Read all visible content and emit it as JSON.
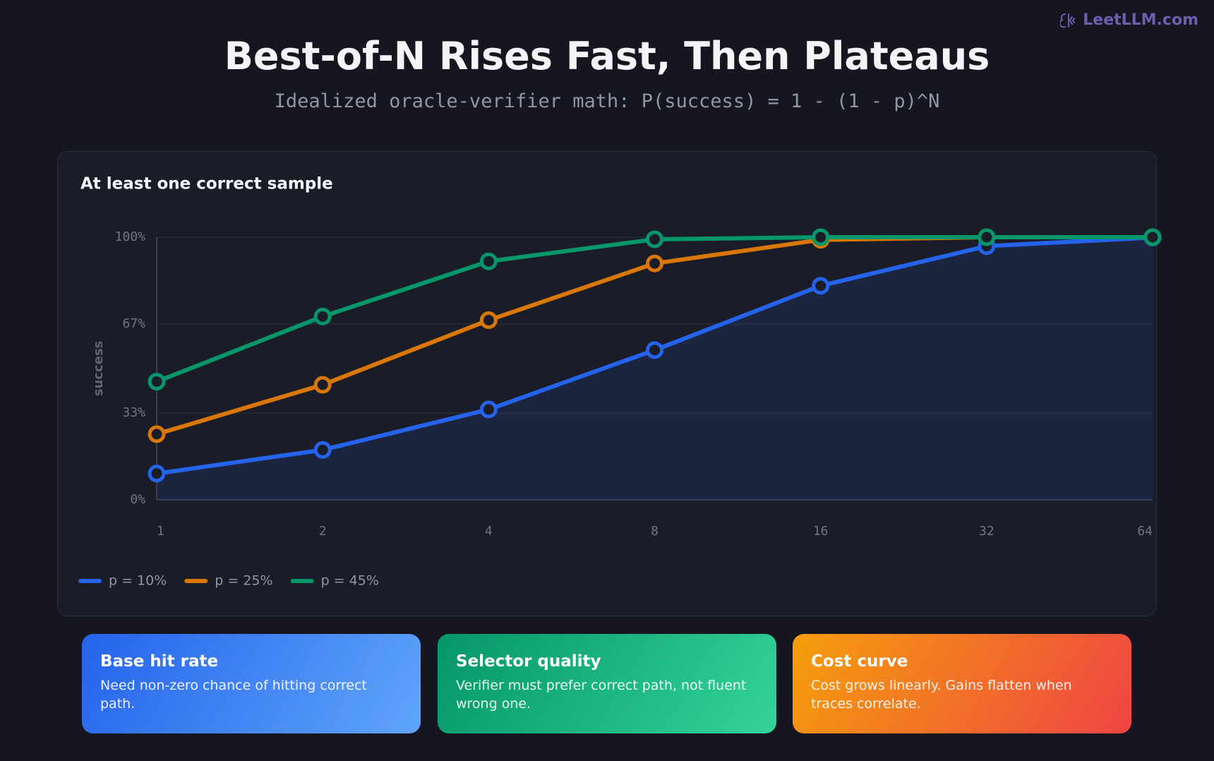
{
  "brand": "LeetLLM.com",
  "chart_data": {
    "type": "line",
    "title": "Best-of-N Rises Fast, Then Plateaus",
    "subtitle": "Idealized oracle-verifier math: P(success) = 1 - (1 - p)^N",
    "panel_title": "At least one correct sample",
    "y_label": "success",
    "categories": [
      "1",
      "2",
      "4",
      "8",
      "16",
      "32",
      "64"
    ],
    "ylim": [
      0,
      100
    ],
    "yticks": [
      {
        "value": 0,
        "label": "0%"
      },
      {
        "value": 33,
        "label": "33%"
      },
      {
        "value": 67,
        "label": "67%"
      },
      {
        "value": 100,
        "label": "100%"
      }
    ],
    "grid": true,
    "legend": "bottom-left",
    "series": [
      {
        "name": "p = 10%",
        "color": "#2563eb",
        "fill_area": true,
        "values": [
          10,
          19,
          34.4,
          57,
          81.5,
          96.6,
          99.9
        ]
      },
      {
        "name": "p = 25%",
        "color": "#d97706",
        "values": [
          25,
          43.8,
          68.4,
          90,
          99,
          100,
          100
        ]
      },
      {
        "name": "p = 45%",
        "color": "#059669",
        "values": [
          45,
          69.8,
          90.8,
          99.2,
          100,
          100,
          100
        ]
      }
    ]
  },
  "cards": [
    {
      "title": "Base hit rate",
      "text": "Need non-zero chance of hitting correct path."
    },
    {
      "title": "Selector quality",
      "text": "Verifier must prefer correct path, not fluent wrong one."
    },
    {
      "title": "Cost curve",
      "text": "Cost grows linearly. Gains flatten when traces correlate."
    }
  ]
}
